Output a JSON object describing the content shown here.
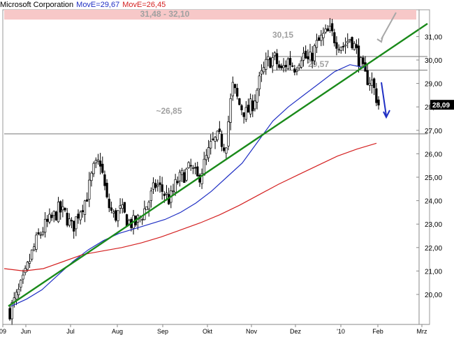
{
  "header": {
    "title": "Microsoft Corporation",
    "ma_fast_label": "MovE=29,67",
    "ma_slow_label": "MovE=26,45"
  },
  "chart_data": {
    "type": "candlestick",
    "title": "Microsoft Corporation",
    "x_tick_labels": [
      "09",
      "Jun",
      "Jul",
      "Aug",
      "Sep",
      "Okt",
      "Nov",
      "Dez",
      "'10",
      "Feb",
      "Mrz"
    ],
    "y_tick_labels": [
      "20,00",
      "21,00",
      "22,00",
      "23,00",
      "24,00",
      "25,00",
      "26,00",
      "27,00",
      "28,00",
      "29,00",
      "30,00",
      "31,00"
    ],
    "ylim": [
      19.1,
      31.6
    ],
    "last_price_label": "28,09",
    "last_price": 28.09,
    "series": [
      {
        "name": "MovE=29,67",
        "color": "#1f2fc4",
        "values": [
          19.5,
          19.8,
          20.2,
          20.8,
          21.4,
          21.9,
          22.3,
          22.6,
          22.8,
          23.0,
          23.2,
          23.5,
          23.9,
          24.4,
          25.0,
          25.6,
          26.5,
          27.4,
          28.0,
          28.5,
          29.0,
          29.5,
          29.8,
          29.67
        ]
      },
      {
        "name": "MovE=26,45",
        "color": "#d42020",
        "values": [
          21.1,
          21.0,
          21.1,
          21.4,
          21.7,
          21.85,
          22.0,
          22.2,
          22.45,
          22.75,
          23.05,
          23.4,
          23.8,
          24.25,
          24.7,
          25.1,
          25.5,
          25.9,
          26.2,
          26.45
        ]
      }
    ],
    "price_path": [
      19.3,
      19.9,
      20.6,
      21.6,
      22.4,
      22.9,
      23.2,
      23.6,
      23.4,
      22.8,
      23.6,
      24.1,
      25.3,
      25.7,
      23.9,
      23.3,
      23.6,
      23.1,
      23.0,
      23.4,
      24.0,
      24.7,
      24.4,
      24.0,
      24.8,
      25.1,
      25.4,
      24.9,
      25.6,
      26.4,
      26.7,
      26.3,
      28.9,
      28.1,
      27.7,
      28.2,
      29.2,
      29.9,
      30.1,
      29.5,
      30.0,
      29.7,
      30.3,
      29.9,
      30.6,
      31.0,
      31.2,
      30.8,
      30.6,
      31.0,
      30.2,
      29.3,
      29.1,
      28.1
    ],
    "trendline": {
      "name": "support trendline",
      "color": "#1a8a1a",
      "from": [
        0.0,
        19.5
      ],
      "to": [
        1.0,
        31.55
      ]
    },
    "levels": [
      {
        "label": "30,15",
        "value": 30.15
      },
      {
        "label": "29,57",
        "value": 29.57
      },
      {
        "label": "~26,85",
        "value": 26.85
      }
    ],
    "resistance_zone": {
      "label": "31,48 - 32,10",
      "low": 31.48,
      "high": 32.1,
      "color": "#f7c8c8"
    },
    "annotations": [
      "grey up arrow",
      "blue down arrow"
    ]
  }
}
